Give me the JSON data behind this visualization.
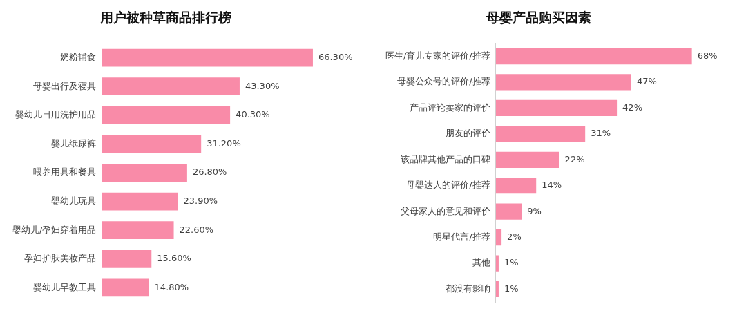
{
  "chart_data": [
    {
      "type": "bar",
      "orientation": "horizontal",
      "title": "用户被种草商品排行榜",
      "categories": [
        "奶粉辅食",
        "母婴出行及寝具",
        "婴幼儿日用洗护用品",
        "婴儿纸尿裤",
        "喂养用具和餐具",
        "婴幼儿玩具",
        "婴幼儿/孕妇穿着用品",
        "孕妇护肤美妆产品",
        "婴幼儿早教工具"
      ],
      "values": [
        66.3,
        43.3,
        40.3,
        31.2,
        26.8,
        23.9,
        22.6,
        15.6,
        14.8
      ],
      "color": "#f98ba8",
      "value_labels": [
        "66.30%",
        "43.30%",
        "40.30%",
        "31.20%",
        "26.80%",
        "23.90%",
        "22.60%",
        "15.60%",
        "14.80%"
      ],
      "tick_labels": "y"
    },
    {
      "type": "bar",
      "orientation": "horizontal",
      "title": "母婴产品购买因素",
      "categories": [
        "医生/育儿专家的评价/推荐",
        "母婴公众号的评价/推荐",
        "产品评论卖家的评价",
        "朋友的评价",
        "该品牌其他产品的口碑",
        "母婴达人的评价/推荐",
        "父母家人的意见和评价",
        "明星代言/推荐",
        "其他",
        "都没有影响"
      ],
      "values": [
        68,
        47,
        42,
        31,
        22,
        14,
        9,
        2,
        1,
        1
      ],
      "color": "#f98ba8",
      "value_labels": [
        "68%",
        "47%",
        "42%",
        "31%",
        "22%",
        "14%",
        "9%",
        "2%",
        "1%",
        "1%"
      ],
      "tick_labels": "y"
    }
  ]
}
